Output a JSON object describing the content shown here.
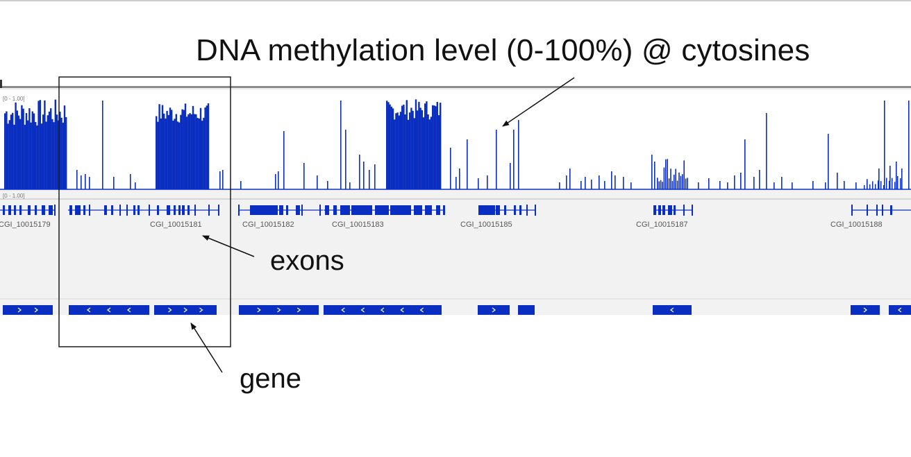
{
  "annotations": {
    "title": "DNA methylation level (0-100%) @ cytosines",
    "exons": "exons",
    "gene": "gene"
  },
  "track": {
    "data_range": "[0 - 1.00]",
    "data_range2": "[0 - 1.00]"
  },
  "feature_labels": [
    "CGI_10015179",
    "CGI_10015181",
    "CGI_10015182",
    "CGI_10015183",
    "CGI_10015185",
    "CGI_10015187",
    "CGI_10015188"
  ],
  "colors": {
    "feature": "#0a2fc0",
    "frame": "#1a1a1a",
    "panel_bg": "#f2f2f2"
  }
}
